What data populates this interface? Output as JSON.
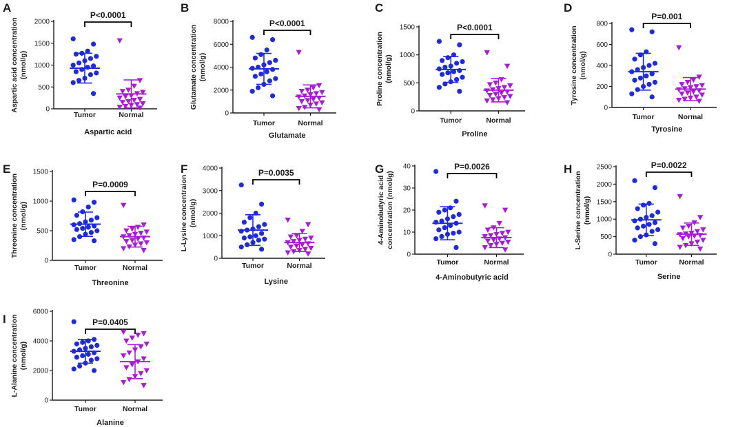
{
  "colors": {
    "tumor": "#1f2bd8",
    "normal": "#a51fd1",
    "axis": "#1a1a1a"
  },
  "chart_data": [
    {
      "panel": "A",
      "type": "scatter",
      "ylabel": [
        "Aspartic acid concentration",
        "(nmol/g)"
      ],
      "xlabel": "Aspartic acid",
      "groups": [
        "Tumor",
        "Normal"
      ],
      "ylim": [
        0,
        2000
      ],
      "yticks": [
        0,
        500,
        1000,
        1500,
        2000
      ],
      "p_value": "P<0.0001",
      "series": [
        {
          "name": "Tumor",
          "mean": 930,
          "sd": 340,
          "values": [
            1600,
            1480,
            1320,
            1270,
            1250,
            1200,
            1150,
            1100,
            1050,
            1000,
            980,
            950,
            900,
            850,
            820,
            780,
            700,
            650,
            600,
            350
          ]
        },
        {
          "name": "Normal",
          "mean": 340,
          "sd": 320,
          "values": [
            1560,
            650,
            520,
            430,
            400,
            380,
            350,
            300,
            280,
            250,
            220,
            200,
            170,
            150,
            120,
            100,
            80,
            60,
            40,
            20
          ]
        }
      ]
    },
    {
      "panel": "B",
      "type": "scatter",
      "ylabel": [
        "Glutamate concentration",
        "(nmol/g)"
      ],
      "xlabel": "Glutamate",
      "groups": [
        "Tumor",
        "Normal"
      ],
      "ylim": [
        0,
        8000
      ],
      "yticks": [
        0,
        2000,
        4000,
        6000,
        8000
      ],
      "p_value": "P<0.0001",
      "series": [
        {
          "name": "Tumor",
          "mean": 3850,
          "sd": 1350,
          "values": [
            6600,
            6400,
            5500,
            5100,
            4800,
            4600,
            4400,
            4200,
            4000,
            3900,
            3800,
            3600,
            3400,
            3200,
            3000,
            2800,
            2500,
            2200,
            1900,
            1500
          ]
        },
        {
          "name": "Normal",
          "mean": 1450,
          "sd": 1000,
          "values": [
            5300,
            2400,
            2200,
            2000,
            1900,
            1800,
            1700,
            1600,
            1500,
            1400,
            1300,
            1200,
            1100,
            1000,
            900,
            800,
            700,
            500,
            400,
            300
          ]
        }
      ]
    },
    {
      "panel": "C",
      "type": "scatter",
      "ylabel": [
        "Proline concentration",
        "(nmol/g)"
      ],
      "xlabel": "Proline",
      "groups": [
        "Tumor",
        "Normal"
      ],
      "ylim": [
        0,
        1500
      ],
      "yticks": [
        0,
        500,
        1000,
        1500
      ],
      "p_value": "P<0.0001",
      "series": [
        {
          "name": "Tumor",
          "mean": 740,
          "sd": 230,
          "values": [
            1240,
            1180,
            1000,
            950,
            900,
            880,
            850,
            800,
            780,
            750,
            720,
            700,
            680,
            650,
            600,
            560,
            520,
            480,
            420,
            350
          ]
        },
        {
          "name": "Normal",
          "mean": 370,
          "sd": 210,
          "values": [
            1040,
            800,
            560,
            500,
            470,
            450,
            420,
            400,
            380,
            360,
            340,
            320,
            300,
            280,
            260,
            240,
            220,
            200,
            180,
            150
          ]
        }
      ]
    },
    {
      "panel": "D",
      "type": "scatter",
      "ylabel": [
        "Tyrosine concentration",
        "(nmol/g)"
      ],
      "xlabel": "Tyrosine",
      "groups": [
        "Tumor",
        "Normal"
      ],
      "ylim": [
        0,
        800
      ],
      "yticks": [
        0,
        200,
        400,
        600,
        800
      ],
      "p_value": "P=0.001",
      "series": [
        {
          "name": "Tumor",
          "mean": 340,
          "sd": 175,
          "values": [
            740,
            720,
            530,
            500,
            460,
            420,
            400,
            380,
            360,
            340,
            320,
            300,
            280,
            260,
            240,
            220,
            200,
            170,
            130,
            100
          ]
        },
        {
          "name": "Normal",
          "mean": 175,
          "sd": 110,
          "values": [
            570,
            290,
            260,
            240,
            220,
            210,
            200,
            190,
            180,
            170,
            160,
            150,
            140,
            130,
            120,
            100,
            90,
            80,
            70,
            60
          ]
        }
      ]
    },
    {
      "panel": "E",
      "type": "scatter",
      "ylabel": [
        "Threonine concentration",
        "(nmol/g)"
      ],
      "xlabel": "Threonine",
      "groups": [
        "Tumor",
        "Normal"
      ],
      "ylim": [
        0,
        1500
      ],
      "yticks": [
        0,
        500,
        1000,
        1500
      ],
      "p_value": "P=0.0009",
      "series": [
        {
          "name": "Tumor",
          "mean": 610,
          "sd": 205,
          "values": [
            1020,
            980,
            900,
            820,
            760,
            720,
            680,
            650,
            620,
            600,
            580,
            560,
            540,
            520,
            500,
            470,
            440,
            400,
            350,
            330
          ]
        },
        {
          "name": "Normal",
          "mean": 400,
          "sd": 175,
          "values": [
            930,
            600,
            560,
            530,
            500,
            480,
            460,
            440,
            420,
            400,
            380,
            360,
            340,
            320,
            300,
            280,
            260,
            230,
            200,
            170
          ]
        }
      ]
    },
    {
      "panel": "F",
      "type": "scatter",
      "ylabel": [
        "L-Lysine concentraion",
        "(nmol/g)"
      ],
      "xlabel": "Lysine",
      "groups": [
        "Tumor",
        "Normal"
      ],
      "ylim": [
        0,
        4000
      ],
      "yticks": [
        0,
        1000,
        2000,
        3000,
        4000
      ],
      "p_value": "P=0.0035",
      "series": [
        {
          "name": "Tumor",
          "mean": 1250,
          "sd": 680,
          "values": [
            3250,
            2400,
            2000,
            1800,
            1600,
            1500,
            1400,
            1300,
            1250,
            1200,
            1100,
            1000,
            950,
            900,
            850,
            800,
            700,
            600,
            500,
            400
          ]
        },
        {
          "name": "Normal",
          "mean": 700,
          "sd": 400,
          "values": [
            1700,
            1500,
            1200,
            1000,
            950,
            900,
            850,
            800,
            750,
            700,
            650,
            600,
            550,
            500,
            450,
            400,
            350,
            300,
            250,
            200
          ]
        }
      ]
    },
    {
      "panel": "G",
      "type": "scatter",
      "ylabel": [
        "4-Aminobutyric acid",
        "concentration (nmol/g)"
      ],
      "xlabel": "4-Aminobutyric acid",
      "groups": [
        "Tumor",
        "Normal"
      ],
      "ylim": [
        0,
        40
      ],
      "yticks": [
        0,
        10,
        20,
        30,
        40
      ],
      "p_value": "P=0.0026",
      "series": [
        {
          "name": "Tumor",
          "mean": 14,
          "sd": 7.5,
          "values": [
            37.5,
            24,
            21,
            20,
            19,
            18,
            17,
            16,
            15,
            14.5,
            14,
            13,
            12,
            11,
            10,
            9.5,
            9,
            8,
            7,
            3
          ]
        },
        {
          "name": "Normal",
          "mean": 7.5,
          "sd": 4.5,
          "values": [
            22,
            20,
            14,
            12,
            11,
            10,
            9.5,
            9,
            8.5,
            8,
            7.5,
            7,
            6.5,
            6,
            5.5,
            5,
            4.5,
            4,
            3,
            2
          ]
        }
      ]
    },
    {
      "panel": "H",
      "type": "scatter",
      "ylabel": [
        "L-Serine concentration",
        "(nmol/g)"
      ],
      "xlabel": "Serine",
      "groups": [
        "Tumor",
        "Normal"
      ],
      "ylim": [
        0,
        2500
      ],
      "yticks": [
        0,
        500,
        1000,
        1500,
        2000,
        2500
      ],
      "p_value": "P=0.0022",
      "series": [
        {
          "name": "Tumor",
          "mean": 980,
          "sd": 450,
          "values": [
            2100,
            1900,
            1450,
            1400,
            1300,
            1200,
            1100,
            1050,
            1000,
            950,
            900,
            850,
            800,
            750,
            700,
            650,
            550,
            500,
            400,
            300
          ]
        },
        {
          "name": "Normal",
          "mean": 570,
          "sd": 320,
          "values": [
            1650,
            1050,
            900,
            800,
            750,
            700,
            650,
            600,
            580,
            560,
            540,
            520,
            500,
            450,
            400,
            350,
            300,
            250,
            200,
            150
          ]
        }
      ]
    },
    {
      "panel": "I",
      "type": "scatter",
      "ylabel": [
        "L-Alanine concentration",
        "(nmol/g)"
      ],
      "xlabel": "Alanine",
      "groups": [
        "Tumor",
        "Normal"
      ],
      "ylim": [
        0,
        6000
      ],
      "yticks": [
        0,
        2000,
        4000,
        6000
      ],
      "p_value": "P=0.0405",
      "series": [
        {
          "name": "Tumor",
          "mean": 3300,
          "sd": 800,
          "values": [
            5300,
            4100,
            4000,
            3900,
            3800,
            3700,
            3600,
            3500,
            3400,
            3300,
            3200,
            3100,
            3000,
            2900,
            2800,
            2700,
            2500,
            2300,
            2100,
            2000
          ]
        },
        {
          "name": "Normal",
          "mean": 2600,
          "sd": 1150,
          "values": [
            4600,
            4500,
            4400,
            4200,
            4000,
            3800,
            3600,
            3400,
            3200,
            3000,
            2800,
            2600,
            2400,
            2200,
            2000,
            1800,
            1600,
            1400,
            1200,
            1000
          ]
        }
      ]
    }
  ]
}
